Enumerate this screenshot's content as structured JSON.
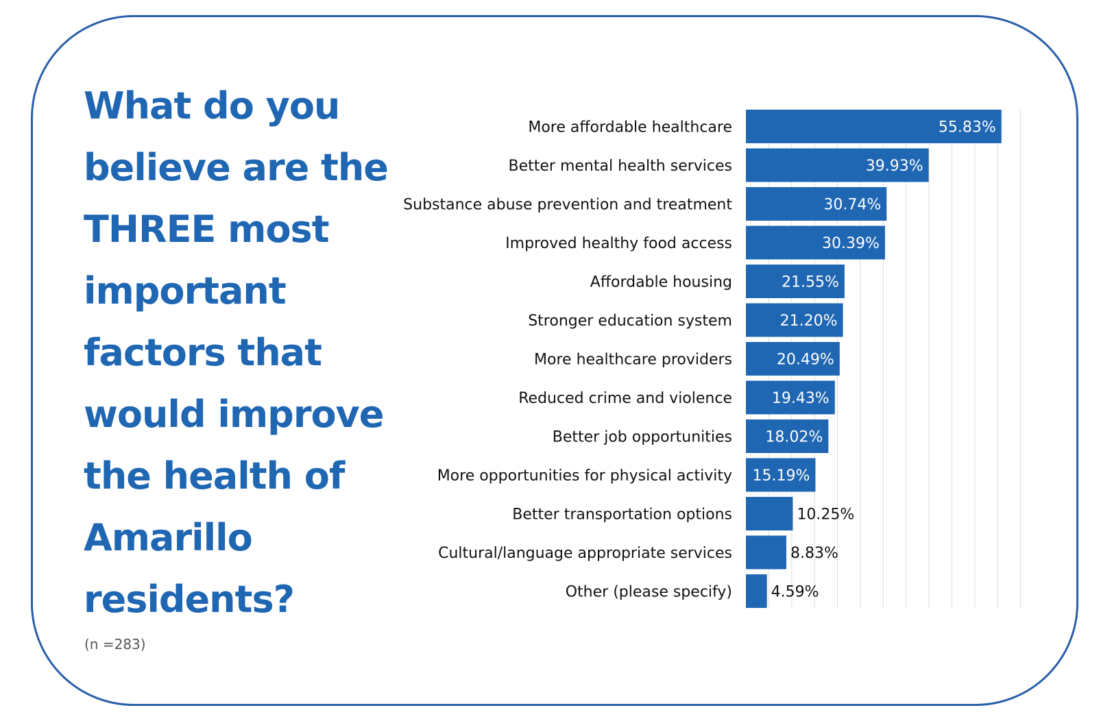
{
  "question": {
    "lines": [
      "What do you",
      "believe are the",
      "THREE most",
      "important",
      "factors that",
      "would improve",
      "the health of",
      "Amarillo",
      "residents?"
    ],
    "sample_size": "(n =283)"
  },
  "colors": {
    "accent": "#1f66b3",
    "border": "#2a5fa8",
    "grid": "#dddddd"
  },
  "chart_data": {
    "type": "bar",
    "orientation": "horizontal",
    "categories": [
      "More affordable healthcare",
      "Better mental health services",
      "Substance abuse prevention and treatment",
      "Improved healthy food access",
      "Affordable housing",
      "Stronger education system",
      "More healthcare providers",
      "Reduced crime and violence",
      "Better job opportunities",
      "More opportunities for physical activity",
      "Better transportation options",
      "Cultural/language appropriate services",
      "Other (please specify)"
    ],
    "values": [
      55.83,
      39.93,
      30.74,
      30.39,
      21.55,
      21.2,
      20.49,
      19.43,
      18.02,
      15.19,
      10.25,
      8.83,
      4.59
    ],
    "value_labels": [
      "55.83%",
      "39.93%",
      "30.74%",
      "30.39%",
      "21.55%",
      "21.20%",
      "20.49%",
      "19.43%",
      "18.02%",
      "15.19%",
      "10.25%",
      "8.83%",
      "4.59%"
    ],
    "xlim": [
      0,
      65
    ],
    "grid": true,
    "title": "",
    "xlabel": "",
    "ylabel": ""
  }
}
